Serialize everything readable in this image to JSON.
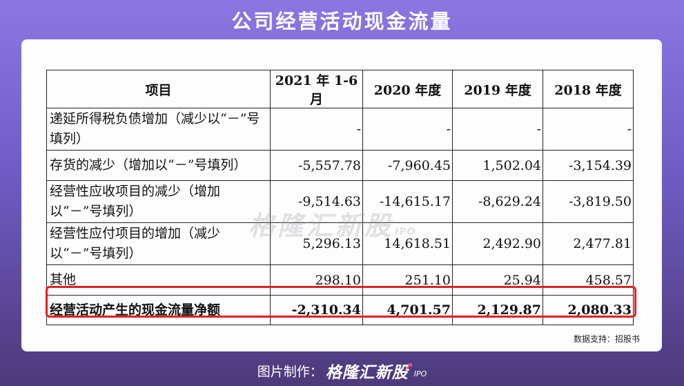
{
  "title": "公司经营活动现金流量",
  "table": {
    "headers": [
      "项目",
      "2021 年 1-6 月",
      "2020 年度",
      "2019 年度",
      "2018 年度"
    ],
    "rows": [
      {
        "label": "递延所得税负债增加（减少以“－”号填列）",
        "values": [
          "-",
          "-",
          "-",
          "-"
        ]
      },
      {
        "label": "存货的减少（增加以“－”号填列）",
        "values": [
          "-5,557.78",
          "-7,960.45",
          "1,502.04",
          "-3,154.39"
        ]
      },
      {
        "label": "经营性应收项目的减少（增加以“－”号填列）",
        "values": [
          "-9,514.63",
          "-14,615.17",
          "-8,629.24",
          "-3,819.50"
        ]
      },
      {
        "label": "经营性应付项目的增加（减少以“－”号填列）",
        "values": [
          "5,296.13",
          "14,618.51",
          "2,492.90",
          "2,477.81"
        ]
      },
      {
        "label": "其他",
        "values": [
          "298.10",
          "251.10",
          "25.94",
          "458.57"
        ]
      },
      {
        "label": "经营活动产生的现金流量净额",
        "values": [
          "-2,310.34",
          "4,701.57",
          "2,129.87",
          "2,080.33"
        ]
      }
    ]
  },
  "highlight_color": "#e02020",
  "watermark": {
    "brand": "格隆汇新股",
    "suffix": "IPO"
  },
  "source": "数据支持：招股书",
  "footer": {
    "label": "图片制作：",
    "brand": "格隆汇新股",
    "suffix": "IPO",
    "icon": "arrow-icon"
  }
}
